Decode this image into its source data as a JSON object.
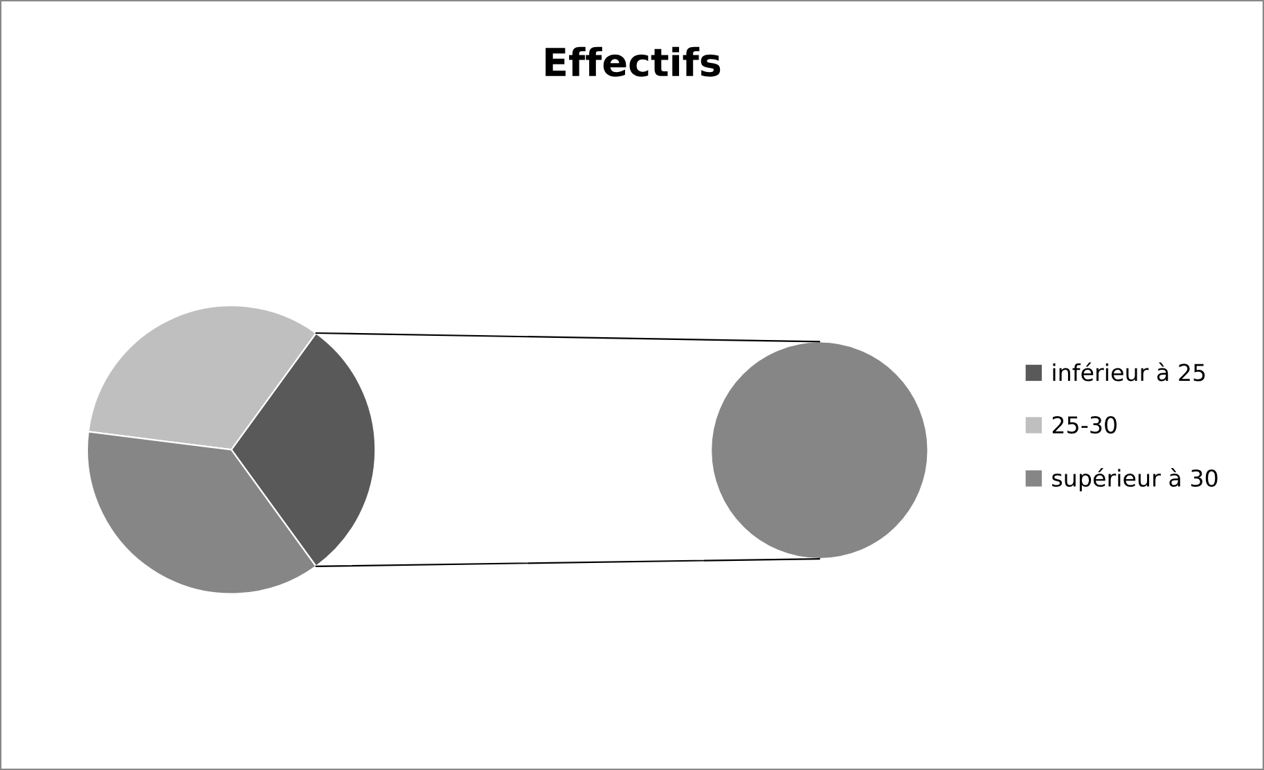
{
  "chart_data": [
    {
      "type": "pie",
      "title": "Effectifs",
      "categories": [
        "inférieur à 25",
        "25-30",
        "supérieur à 30"
      ],
      "values": [
        30,
        33,
        37
      ],
      "colors": [
        "#595959",
        "#bfbfbf",
        "#868686"
      ],
      "legend": "right"
    },
    {
      "type": "pie",
      "categories": [
        null
      ],
      "values": [
        100
      ],
      "colors": [
        "#868686"
      ]
    }
  ]
}
